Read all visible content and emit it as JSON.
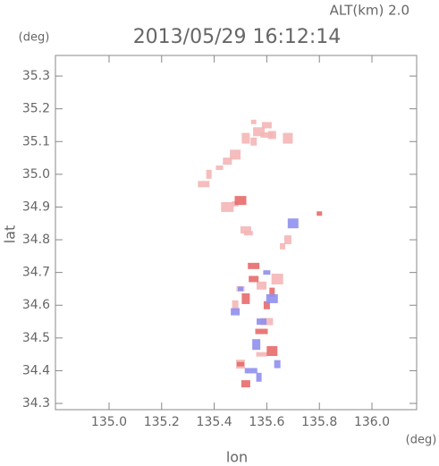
{
  "chart_data": {
    "type": "scatter",
    "title": "2013/05/29 16:12:14",
    "subtitle": "ALT(km) 2.0",
    "y_unit": "(deg)",
    "x_unit": "(deg)",
    "xlabel": "lon",
    "ylabel": "lat",
    "xlim": [
      134.796,
      136.17
    ],
    "ylim": [
      34.281,
      35.363
    ],
    "xticks": [
      {
        "value": 135.0,
        "label": "135.0"
      },
      {
        "value": 135.2,
        "label": "135.2"
      },
      {
        "value": 135.4,
        "label": "135.4"
      },
      {
        "value": 135.6,
        "label": "135.6"
      },
      {
        "value": 135.8,
        "label": "135.8"
      },
      {
        "value": 136.0,
        "label": "136.0"
      }
    ],
    "yticks": [
      34.3,
      34.4,
      34.5,
      34.6,
      34.7,
      34.8,
      34.9,
      {
        "value": 35.0,
        "label": "35.0"
      },
      35.1,
      35.2,
      35.3
    ],
    "series": [
      {
        "color": "#f4b6b6",
        "x": [
          135.55,
          135.57,
          135.6,
          135.52,
          135.55,
          135.6,
          135.48,
          135.45,
          135.42,
          135.38,
          135.36,
          135.68,
          135.62,
          135.48,
          135.45,
          135.52,
          135.53,
          135.68,
          135.66,
          135.64,
          135.58,
          135.5,
          135.48,
          135.6,
          135.58,
          135.5
        ],
        "y": [
          35.16,
          35.13,
          35.15,
          35.11,
          35.1,
          35.12,
          35.06,
          35.04,
          35.02,
          35.0,
          34.97,
          35.11,
          35.12,
          34.91,
          34.9,
          34.83,
          34.82,
          34.8,
          34.78,
          34.68,
          34.66,
          34.65,
          34.6,
          34.55,
          34.45,
          34.42
        ]
      },
      {
        "color": "#e86a6a",
        "x": [
          135.8,
          135.5,
          135.55,
          135.52,
          135.6,
          135.58,
          135.62,
          135.52,
          135.5,
          135.62,
          135.55
        ],
        "y": [
          34.88,
          34.92,
          34.68,
          34.62,
          34.6,
          34.52,
          34.46,
          34.36,
          34.42,
          34.64,
          34.72
        ]
      },
      {
        "color": "#8f8ff0",
        "x": [
          135.5,
          135.62,
          135.58,
          135.56,
          135.64,
          135.54,
          135.7,
          135.48,
          135.6,
          135.57
        ],
        "y": [
          34.65,
          34.62,
          34.55,
          34.48,
          34.42,
          34.4,
          34.85,
          34.58,
          34.7,
          34.38
        ]
      }
    ]
  }
}
